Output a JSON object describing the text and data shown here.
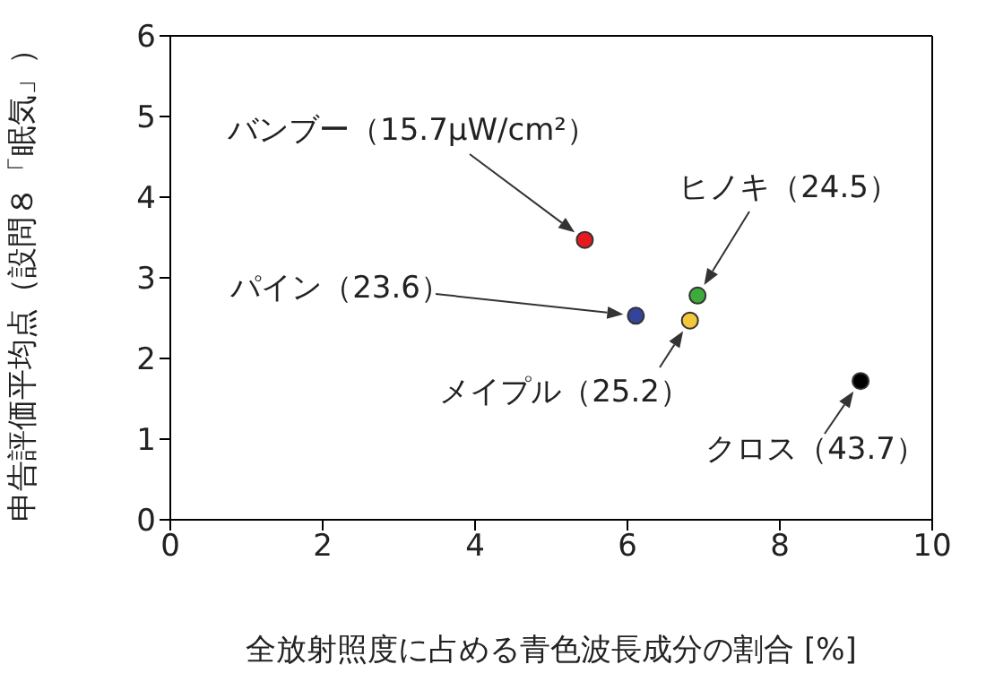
{
  "chart_data": {
    "type": "scatter",
    "xlabel": "全放射照度に占める青色波長成分の割合 [%]",
    "ylabel": "申告評価平均点（設問８「眠気」）",
    "x": [
      5.44,
      6.11,
      6.92,
      6.82,
      9.06
    ],
    "values": [
      3.47,
      2.53,
      2.78,
      2.47,
      1.72
    ],
    "colors": [
      "#e41a1c",
      "#34449a",
      "#3cab3c",
      "#f2c73a",
      "#000000"
    ],
    "xlim": [
      0,
      10
    ],
    "xticks": [
      0,
      2,
      4,
      6,
      8,
      10
    ],
    "ylim": [
      0,
      6
    ],
    "yticks": [
      0,
      1,
      2,
      3,
      4,
      5,
      6
    ],
    "grid": false,
    "legend": false,
    "marker": "circle",
    "annotations": [
      {
        "text": "バンブー（15.7μW/cm²）",
        "x": 5.44,
        "y": 3.47
      },
      "パイン（23.6）",
      {
        "text": "ヒノキ（24.5）",
        "x": 6.92,
        "y": 2.78
      },
      {
        "text": "メイプル（25.2）",
        "x": 6.82,
        "y": 2.47
      },
      {
        "text": "クロス（43.7）",
        "x": 9.06,
        "y": 1.72
      }
    ]
  }
}
